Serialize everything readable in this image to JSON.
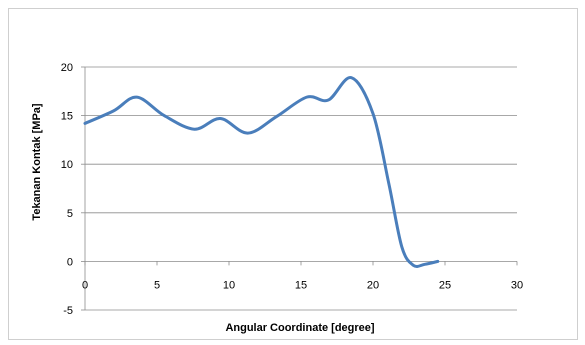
{
  "chart_data": {
    "type": "line",
    "title": "",
    "xlabel": "Angular Coordinate [degree]",
    "ylabel": "Tekanan Kontak  [MPa]",
    "xlim": [
      0,
      30
    ],
    "ylim": [
      -5,
      20
    ],
    "x_ticks": [
      "0",
      "5",
      "10",
      "15",
      "20",
      "25",
      "30"
    ],
    "y_ticks": [
      "-5",
      "0",
      "5",
      "10",
      "15",
      "20"
    ],
    "grid": "horizontal",
    "legend": "none",
    "series": [
      {
        "color": "#4A7EBB",
        "x": [
          0,
          2,
          3.6,
          5.5,
          7.6,
          9.4,
          11.3,
          13.3,
          15.4,
          16.9,
          18.5,
          20.0,
          21.1,
          22.0,
          22.8,
          23.6,
          24.5
        ],
        "y": [
          14.2,
          15.5,
          16.9,
          15.0,
          13.6,
          14.7,
          13.2,
          14.9,
          16.9,
          16.6,
          18.9,
          15.2,
          8.0,
          1.5,
          -0.4,
          -0.3,
          0.0
        ]
      }
    ]
  }
}
